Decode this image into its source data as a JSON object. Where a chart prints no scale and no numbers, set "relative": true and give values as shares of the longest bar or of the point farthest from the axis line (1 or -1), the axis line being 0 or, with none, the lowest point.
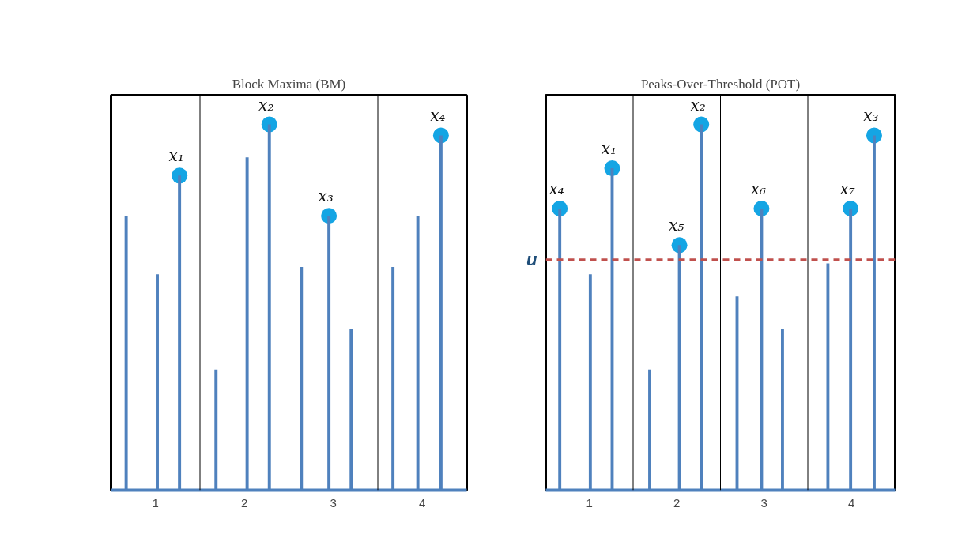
{
  "chart_data": [
    {
      "type": "bar",
      "title": "Block Maxima (BM)",
      "relative": true,
      "xlim": [
        0,
        4
      ],
      "xticks": [
        {
          "value": 0.5,
          "label": "1"
        },
        {
          "value": 1.5,
          "label": "2"
        },
        {
          "value": 2.5,
          "label": "3"
        },
        {
          "value": 3.5,
          "label": "4"
        }
      ],
      "grid": false,
      "series": [
        {
          "color": "#4f81bd",
          "x": [
            0.17,
            0.52,
            0.77,
            1.18,
            1.53,
            1.78,
            2.14,
            2.45,
            2.7,
            3.17,
            3.45,
            3.71
          ],
          "values": [
            0.75,
            0.59,
            0.86,
            0.33,
            0.91,
            1.0,
            0.61,
            0.75,
            0.44,
            0.61,
            0.75,
            0.97
          ]
        },
        {
          "type": "scatter",
          "marker": "circle",
          "color": "#14a5e4",
          "x": [
            0.77,
            1.78,
            2.45,
            3.71
          ],
          "values": [
            0.86,
            1.0,
            0.75,
            0.97
          ]
        }
      ],
      "ref_lines": [
        {
          "axis": "x",
          "value": 1,
          "color": "#000000",
          "line_style": "solid"
        },
        {
          "axis": "x",
          "value": 2,
          "color": "#000000",
          "line_style": "solid"
        },
        {
          "axis": "x",
          "value": 3,
          "color": "#000000",
          "line_style": "solid"
        }
      ],
      "annotations": [
        {
          "text": "x₁",
          "x": 0.77,
          "y": 0.86
        },
        {
          "text": "x₂",
          "x": 1.78,
          "y": 1.0
        },
        {
          "text": "x₃",
          "x": 2.45,
          "y": 0.75
        },
        {
          "text": "x₄",
          "x": 3.71,
          "y": 0.97
        }
      ]
    },
    {
      "type": "bar",
      "title": "Peaks-Over-Threshold (POT)",
      "relative": true,
      "xlim": [
        0,
        4
      ],
      "xticks": [
        {
          "value": 0.5,
          "label": "1"
        },
        {
          "value": 1.5,
          "label": "2"
        },
        {
          "value": 2.5,
          "label": "3"
        },
        {
          "value": 3.5,
          "label": "4"
        }
      ],
      "grid": false,
      "series": [
        {
          "color": "#4f81bd",
          "x": [
            0.16,
            0.51,
            0.76,
            1.19,
            1.53,
            1.78,
            2.19,
            2.47,
            2.71,
            3.23,
            3.49,
            3.76
          ],
          "values": [
            0.77,
            0.59,
            0.88,
            0.33,
            0.67,
            1.0,
            0.53,
            0.77,
            0.44,
            0.62,
            0.77,
            0.97
          ]
        },
        {
          "type": "scatter",
          "marker": "circle",
          "color": "#14a5e4",
          "x": [
            0.16,
            0.76,
            1.53,
            1.78,
            2.47,
            3.49,
            3.76
          ],
          "values": [
            0.77,
            0.88,
            0.67,
            1.0,
            0.77,
            0.77,
            0.97
          ]
        }
      ],
      "ref_lines": [
        {
          "axis": "x",
          "value": 1,
          "color": "#000000",
          "line_style": "solid"
        },
        {
          "axis": "x",
          "value": 2,
          "color": "#000000",
          "line_style": "solid"
        },
        {
          "axis": "x",
          "value": 3,
          "color": "#000000",
          "line_style": "solid"
        },
        {
          "axis": "y",
          "value": 0.63,
          "label": "u",
          "color": "#c0504d",
          "line_style": "dashed"
        }
      ],
      "annotations": [
        {
          "text": "x₄",
          "x": 0.16,
          "y": 0.77
        },
        {
          "text": "x₁",
          "x": 0.76,
          "y": 0.88
        },
        {
          "text": "x₅",
          "x": 1.53,
          "y": 0.67
        },
        {
          "text": "x₂",
          "x": 1.78,
          "y": 1.0
        },
        {
          "text": "x₆",
          "x": 2.47,
          "y": 0.77
        },
        {
          "text": "x₇",
          "x": 3.49,
          "y": 0.77
        },
        {
          "text": "x₃",
          "x": 3.76,
          "y": 0.97
        }
      ]
    }
  ]
}
